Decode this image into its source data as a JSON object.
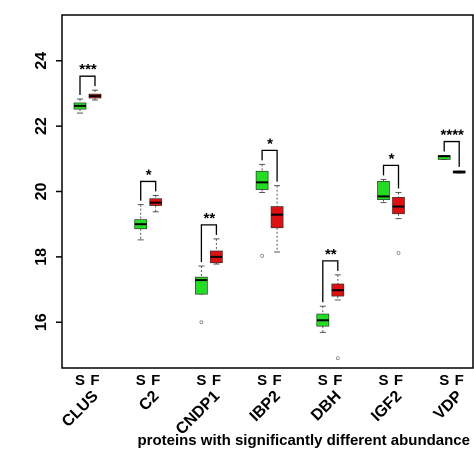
{
  "chart_data": {
    "type": "box",
    "x_label": "proteins with significantly different abundance",
    "categories": [
      "CLUS",
      "C2",
      "CNDP1",
      "IBP2",
      "DBH",
      "IGF2",
      "VDP"
    ],
    "significance": [
      "***",
      "*",
      "**",
      "*",
      "**",
      "*",
      "****"
    ],
    "ylim": [
      14.6,
      25.4
    ],
    "yticks": [
      16,
      18,
      20,
      22,
      24
    ],
    "series": [
      {
        "name": "S",
        "color": "#22dd22",
        "boxes": [
          {
            "whislo": 22.4,
            "q1": 22.52,
            "median": 22.62,
            "q3": 22.71,
            "whishi": 22.83,
            "outliers": []
          },
          {
            "whislo": 18.52,
            "q1": 18.86,
            "median": 19.0,
            "q3": 19.14,
            "whishi": 19.6,
            "outliers": []
          },
          {
            "whislo": 16.86,
            "q1": 16.86,
            "median": 17.29,
            "q3": 17.38,
            "whishi": 17.72,
            "outliers": [
              16.0
            ]
          },
          {
            "whislo": 19.97,
            "q1": 20.06,
            "median": 20.28,
            "q3": 20.62,
            "whishi": 20.83,
            "outliers": [
              18.03
            ]
          },
          {
            "whislo": 15.69,
            "q1": 15.88,
            "median": 16.06,
            "q3": 16.25,
            "whishi": 16.49,
            "outliers": []
          },
          {
            "whislo": 19.66,
            "q1": 19.75,
            "median": 19.85,
            "q3": 20.31,
            "whishi": 20.37,
            "outliers": []
          },
          {
            "whislo": 20.98,
            "q1": 20.98,
            "median": 21.08,
            "q3": 21.1,
            "whishi": 21.1,
            "outliers": []
          }
        ]
      },
      {
        "name": "F",
        "color": "#dd1111",
        "boxes": [
          {
            "whislo": 22.8,
            "q1": 22.86,
            "median": 22.92,
            "q3": 22.98,
            "whishi": 23.1,
            "outliers": []
          },
          {
            "whislo": 19.38,
            "q1": 19.57,
            "median": 19.66,
            "q3": 19.78,
            "whishi": 19.88,
            "outliers": []
          },
          {
            "whislo": 17.78,
            "q1": 17.82,
            "median": 18.0,
            "q3": 18.18,
            "whishi": 18.55,
            "outliers": []
          },
          {
            "whislo": 18.15,
            "q1": 18.89,
            "median": 19.29,
            "q3": 19.54,
            "whishi": 20.18,
            "outliers": []
          },
          {
            "whislo": 16.68,
            "q1": 16.8,
            "median": 16.98,
            "q3": 17.17,
            "whishi": 17.45,
            "outliers": [
              14.9
            ]
          },
          {
            "whislo": 19.17,
            "q1": 19.32,
            "median": 19.54,
            "q3": 19.82,
            "whishi": 19.97,
            "outliers": [
              18.12
            ]
          },
          {
            "whislo": 20.56,
            "q1": 20.56,
            "median": 20.6,
            "q3": 20.63,
            "whishi": 20.63,
            "outliers": []
          }
        ]
      }
    ]
  }
}
